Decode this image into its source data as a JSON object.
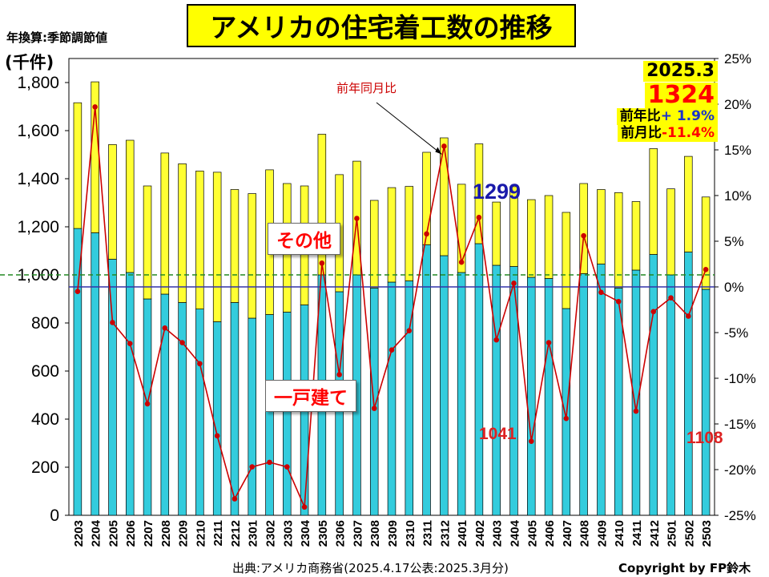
{
  "header": {
    "title": "アメリカの住宅着工数の推移",
    "note": "年換算:季節調節値",
    "unit": "(千件)"
  },
  "latest": {
    "date": "2025.3",
    "value": "1324",
    "yoy_label": "前年比",
    "yoy_value": "+ 1.9%",
    "mom_label": "前月比",
    "mom_value": "-11.4%"
  },
  "labels": {
    "other": "その他",
    "single": "一戸建て",
    "arrow_label": "前年同月比",
    "callout_2402": "1299",
    "callout_2404": "1041",
    "callout_2503": "1108"
  },
  "footer": {
    "source": "出典:アメリカ商務省(2025.4.17公表:2025.3月分)",
    "copyright": "Copyright by FP鈴木"
  },
  "colors": {
    "single": "#33ccdd",
    "other": "#ffff33",
    "line": "#cc0000",
    "zero_line": "#3333aa",
    "ref_line": "#228822"
  },
  "chart_data": {
    "type": "bar",
    "stacked": true,
    "categories": [
      "2203",
      "2204",
      "2205",
      "2206",
      "2207",
      "2208",
      "2209",
      "2210",
      "2211",
      "2212",
      "2301",
      "2302",
      "2303",
      "2304",
      "2305",
      "2306",
      "2307",
      "2308",
      "2309",
      "2310",
      "2311",
      "2312",
      "2401",
      "2402",
      "2403",
      "2404",
      "2405",
      "2406",
      "2407",
      "2408",
      "2409",
      "2410",
      "2411",
      "2412",
      "2501",
      "2502",
      "2503"
    ],
    "series": [
      {
        "name": "一戸建て",
        "axis": "left",
        "values": [
          1193,
          1175,
          1065,
          1010,
          900,
          920,
          885,
          858,
          805,
          885,
          820,
          835,
          845,
          875,
          1000,
          930,
          1000,
          945,
          970,
          975,
          1125,
          1080,
          1010,
          1130,
          1040,
          1035,
          990,
          985,
          860,
          1005,
          1045,
          945,
          1020,
          1085,
          1000,
          1095,
          940
        ]
      },
      {
        "name": "その他",
        "axis": "left",
        "values": [
          523,
          628,
          477,
          550,
          470,
          587,
          577,
          574,
          622,
          470,
          518,
          602,
          535,
          495,
          585,
          487,
          473,
          365,
          393,
          393,
          385,
          490,
          367,
          415,
          263,
          332,
          323,
          345,
          400,
          375,
          310,
          397,
          285,
          440,
          358,
          398,
          384
        ]
      },
      {
        "name": "前年同月比",
        "axis": "right",
        "type": "line",
        "values": [
          -0.5,
          19.7,
          -3.9,
          -6.2,
          -12.8,
          -4.5,
          -6.1,
          -8.4,
          -16.3,
          -23.2,
          -19.7,
          -19.2,
          -19.7,
          -24.1,
          2.6,
          -9.6,
          7.5,
          -13.3,
          -6.9,
          -4.8,
          5.8,
          15.4,
          2.7,
          7.6,
          -5.8,
          0.4,
          -16.9,
          -6.1,
          -14.4,
          5.6,
          -0.6,
          -1.6,
          -13.6,
          -2.7,
          -1.2,
          -3.2,
          1.9
        ]
      }
    ],
    "y_left": {
      "min": 0,
      "max": 1900,
      "ticks": [
        0,
        200,
        400,
        600,
        800,
        1000,
        1200,
        1400,
        1600,
        1800
      ],
      "tick_labels": [
        "0",
        "200",
        "400",
        "600",
        "800",
        "1,000",
        "1,200",
        "1,400",
        "1,600",
        "1,800"
      ]
    },
    "y_right": {
      "min": -25,
      "max": 25,
      "ticks": [
        -25,
        -20,
        -15,
        -10,
        -5,
        0,
        5,
        10,
        15,
        20,
        25
      ],
      "tick_labels": [
        "-25%",
        "-20%",
        "-15%",
        "-10%",
        "-5%",
        "0%",
        "5%",
        "10%",
        "15%",
        "20%",
        "25%"
      ]
    },
    "reference_line": 1000
  }
}
